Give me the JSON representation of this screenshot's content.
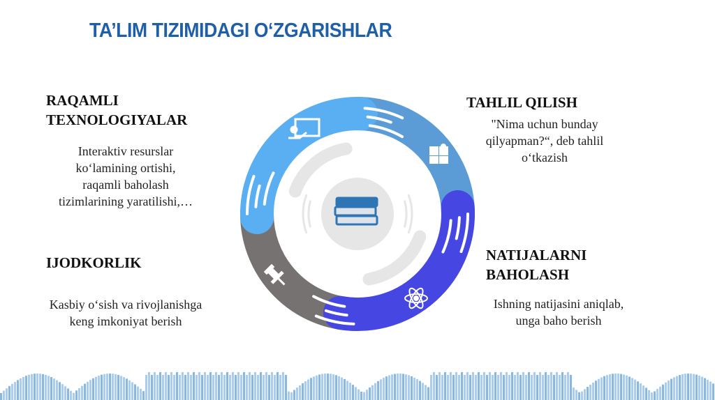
{
  "title": "TA’LIM TIZIMIDAGI O‘ZGARISHLAR",
  "sections": [
    {
      "heading_lines": [
        "RAQAMLI",
        "TEXNOLOGIYALAR"
      ],
      "text_lines": [
        "Interaktiv resurslar",
        "ko‘lamining ortishi,",
        "raqamli baholash",
        "tizimlarining yaratilishi,…"
      ],
      "icon": "presentation-icon",
      "color": "#5aaef2"
    },
    {
      "heading_lines": [
        "TAHLIL QILISH"
      ],
      "text_lines": [
        "\"Nima uchun bunday",
        "qilyapman?“, deb tahlil",
        "o‘tkazish"
      ],
      "icon": "puzzle-icon",
      "color": "#5b9bd6"
    },
    {
      "heading_lines": [
        "NATIJALARNI",
        "BAHOLASH"
      ],
      "text_lines": [
        "Ishning natijasini aniqlab,",
        "unga baho berish"
      ],
      "icon": "atom-icon",
      "color": "#4646e2"
    },
    {
      "heading_lines": [
        "IJODKORLIK"
      ],
      "text_lines": [
        "Kasbiy o‘sish va rivojlanishga",
        "keng imkoniyat berish"
      ],
      "icon": "pushpin-icon",
      "color": "#767272"
    }
  ],
  "center_icon": "books-icon",
  "title_color": "#1f5fa8"
}
